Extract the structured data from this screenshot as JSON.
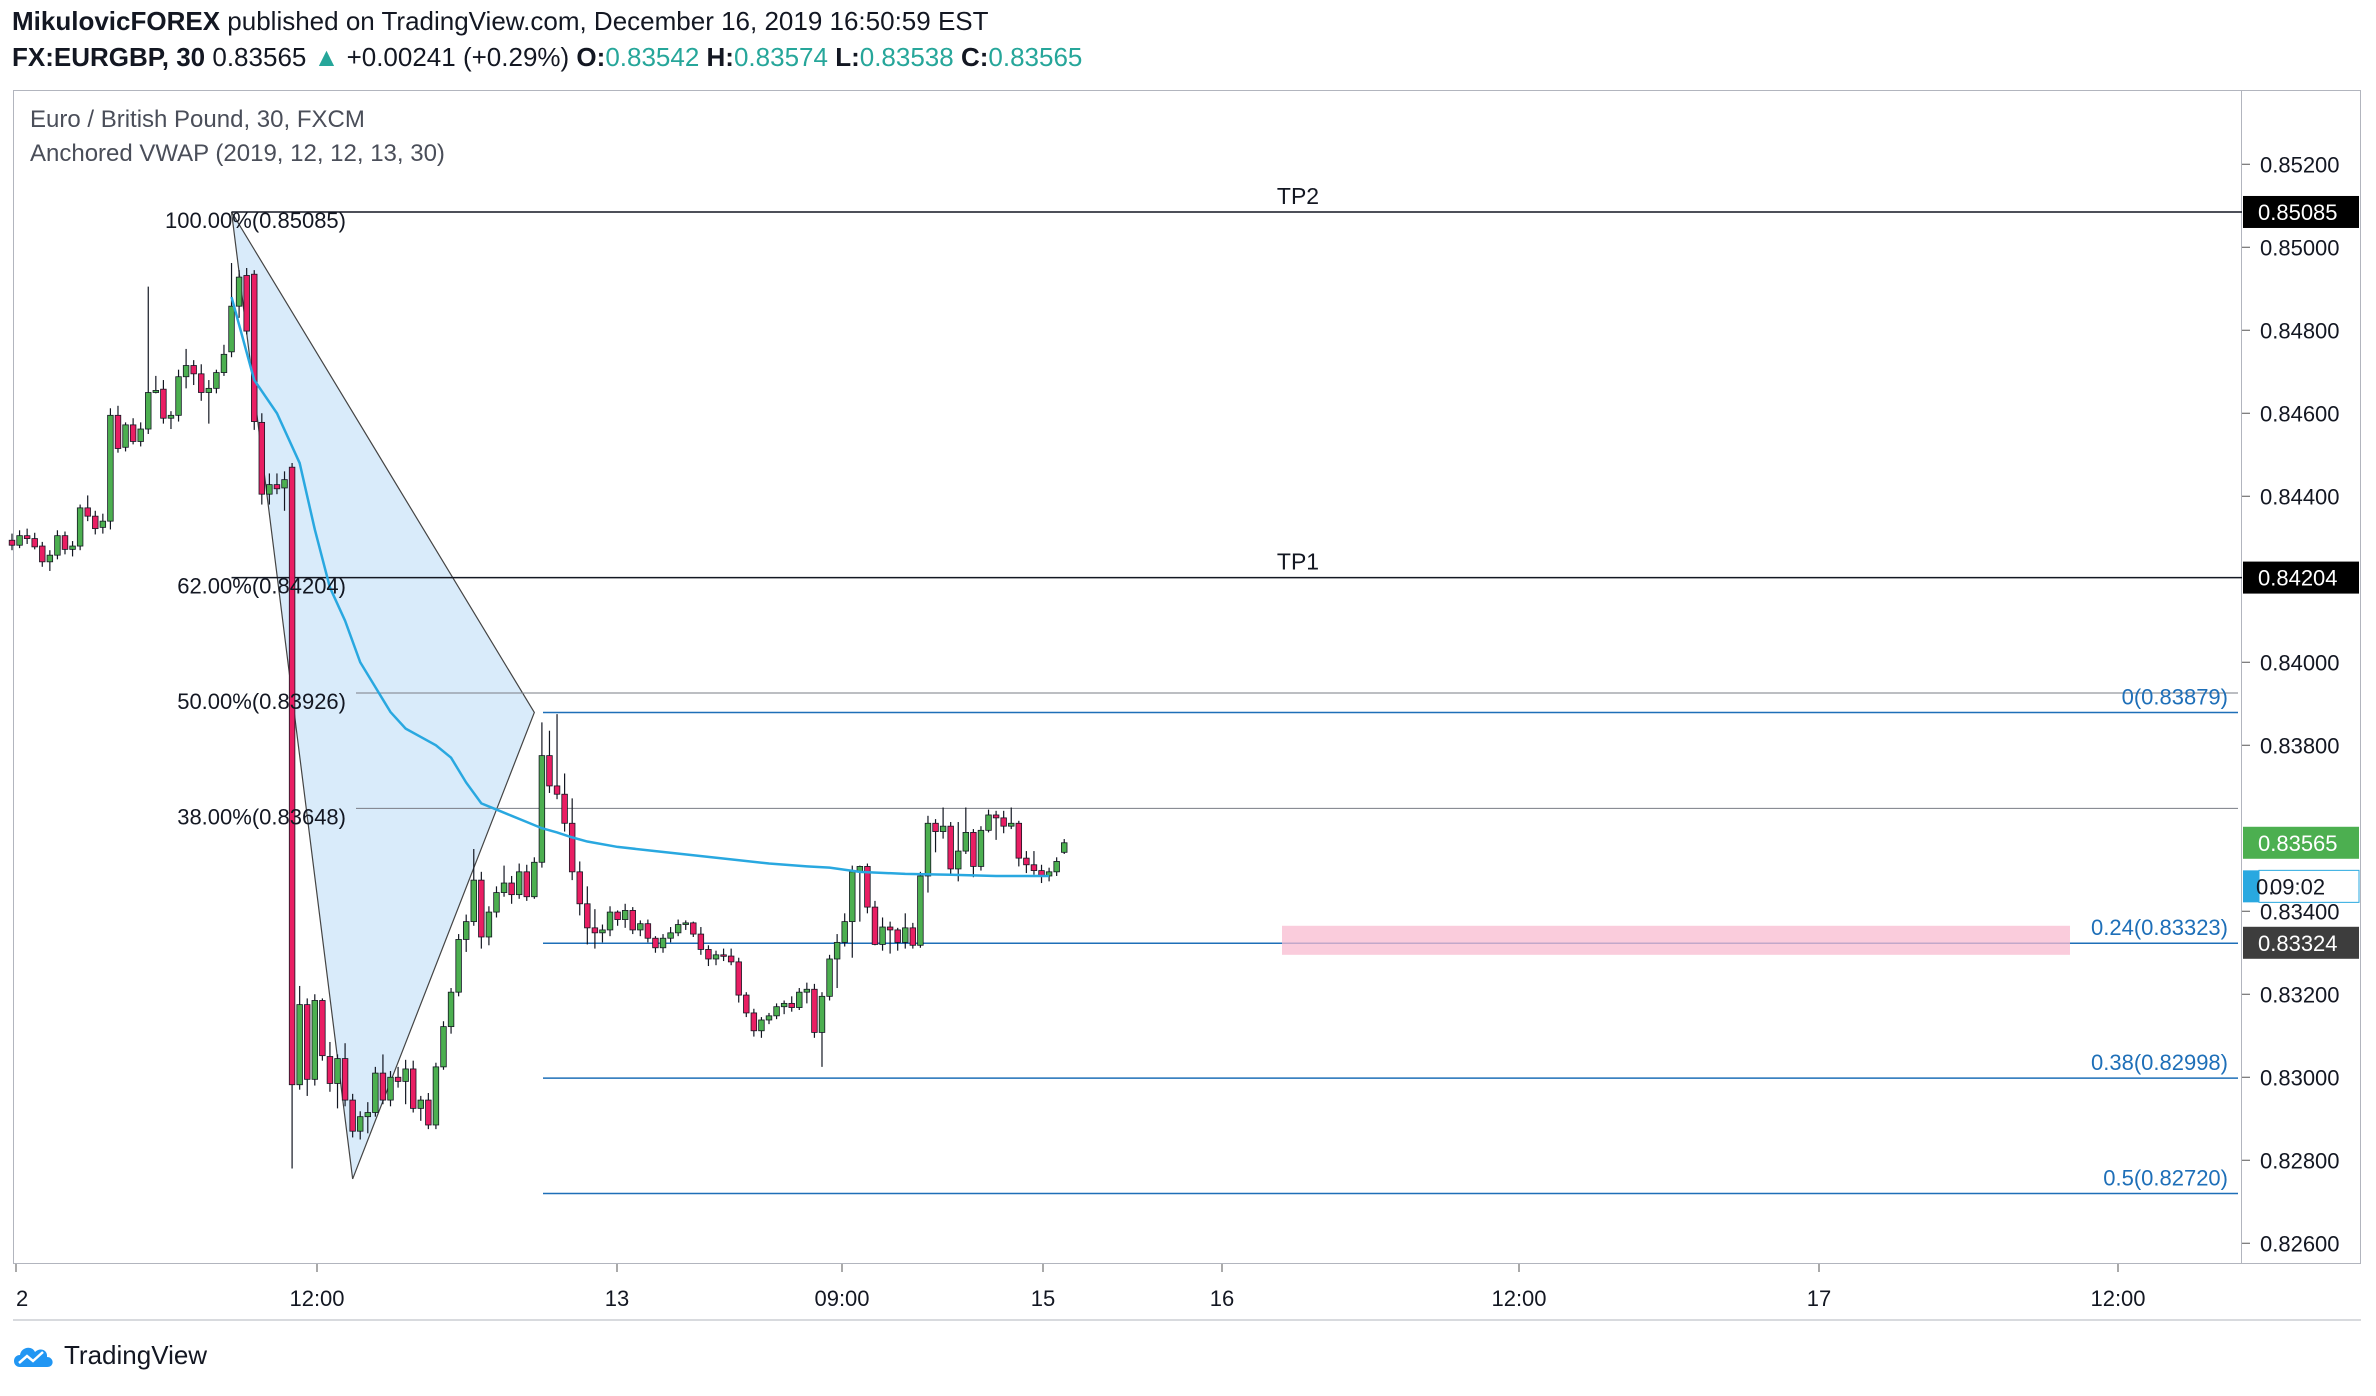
{
  "header": {
    "publisher": "MikulovicFOREX",
    "published_text": "published on TradingView.com, December 16, 2019 16:50:59 EST",
    "symbol": "FX:EURGBP, 30",
    "last": "0.83565",
    "change_arrow": "▲",
    "change": "+0.00241 (+0.29%)",
    "o_label": "O:",
    "o_val": "0.83542",
    "h_label": "H:",
    "h_val": "0.83574",
    "l_label": "L:",
    "l_val": "0.83538",
    "c_label": "C:",
    "c_val": "0.83565"
  },
  "legend": {
    "title": "Euro / British Pound, 30, FXCM",
    "indicator": "Anchored VWAP (2019, 12, 12, 13, 30)"
  },
  "footer": {
    "brand": "TradingView"
  },
  "colors": {
    "up": "#26a69a",
    "candle_up": "#4caf50",
    "candle_down": "#e91e63",
    "vwap": "#29a8e0",
    "fib": "#1e6fb8",
    "tp_line": "#131722",
    "triangle_fill": "#d9ebfa",
    "zone": "#f8bbd0"
  },
  "chart_data": {
    "type": "candlestick",
    "ylim": [
      0.8255,
      0.8527
    ],
    "price_ticks": [
      "0.85200",
      "0.85000",
      "0.84800",
      "0.84600",
      "0.84400",
      "0.84000",
      "0.83800",
      "0.83400",
      "0.83200",
      "0.83000",
      "0.82800",
      "0.82600"
    ],
    "time_labels": [
      "2",
      "12:00",
      "13",
      "09:00",
      "15",
      "16",
      "12:00",
      "17",
      "12:00"
    ],
    "price_labels": [
      {
        "text": "0.85085",
        "price": 0.85085,
        "style": "dark"
      },
      {
        "text": "0.84204",
        "price": 0.84204,
        "style": "dark"
      },
      {
        "text": "0.83565",
        "price": 0.83565,
        "style": "green"
      },
      {
        "text": "0.",
        "extra": "09:02",
        "price": 0.8346,
        "style": "vwap"
      },
      {
        "text": "0.83324",
        "price": 0.83324,
        "style": "gray"
      }
    ],
    "tp_lines": [
      {
        "label": "TP2",
        "price": 0.85085
      },
      {
        "label": "TP1",
        "price": 0.84204
      }
    ],
    "retracement_levels": [
      {
        "label": "100.00%(0.85085)",
        "price": 0.85085
      },
      {
        "label": "62.00%(0.84204)",
        "price": 0.84204
      },
      {
        "label": "50.00%(0.83926)",
        "price": 0.83926
      },
      {
        "label": "38.00%(0.83648)",
        "price": 0.83648
      }
    ],
    "fib_levels": [
      {
        "label": "0(0.83879)",
        "price": 0.83879
      },
      {
        "label": "0.24(0.83323)",
        "price": 0.83323
      },
      {
        "label": "0.38(0.82998)",
        "price": 0.82998
      },
      {
        "label": "0.5(0.82720)",
        "price": 0.8272
      }
    ],
    "zone": {
      "top": 0.83365,
      "bottom": 0.83295
    },
    "triangle": [
      {
        "bar": 29,
        "price": 0.85085
      },
      {
        "bar": 45,
        "price": 0.82755
      },
      {
        "bar": 69,
        "price": 0.83879
      }
    ],
    "candles": [
      [
        0.84294,
        0.8431,
        0.8427,
        0.84282
      ],
      [
        0.84282,
        0.84318,
        0.84275,
        0.84305
      ],
      [
        0.84305,
        0.84322,
        0.84285,
        0.84298
      ],
      [
        0.84298,
        0.84312,
        0.84272,
        0.84278
      ],
      [
        0.8428,
        0.8429,
        0.8423,
        0.84242
      ],
      [
        0.84242,
        0.8427,
        0.8422,
        0.84258
      ],
      [
        0.84258,
        0.84318,
        0.84248,
        0.84305
      ],
      [
        0.84305,
        0.84315,
        0.8426,
        0.84272
      ],
      [
        0.84272,
        0.84292,
        0.84255,
        0.8428
      ],
      [
        0.8428,
        0.8438,
        0.8427,
        0.84372
      ],
      [
        0.84372,
        0.84402,
        0.8434,
        0.84352
      ],
      [
        0.84352,
        0.84365,
        0.84308,
        0.84322
      ],
      [
        0.84325,
        0.84358,
        0.8431,
        0.8434
      ],
      [
        0.8434,
        0.84612,
        0.8432,
        0.84595
      ],
      [
        0.84595,
        0.84618,
        0.84505,
        0.84515
      ],
      [
        0.84518,
        0.84578,
        0.84508,
        0.84572
      ],
      [
        0.84572,
        0.84588,
        0.84525,
        0.84532
      ],
      [
        0.84532,
        0.84578,
        0.8452,
        0.84562
      ],
      [
        0.84562,
        0.84905,
        0.8455,
        0.8465
      ],
      [
        0.8465,
        0.8469,
        0.84648,
        0.84655
      ],
      [
        0.84658,
        0.8468,
        0.84575,
        0.84588
      ],
      [
        0.84588,
        0.84605,
        0.84562,
        0.84595
      ],
      [
        0.84595,
        0.84705,
        0.8458,
        0.84688
      ],
      [
        0.84688,
        0.84755,
        0.8466,
        0.84715
      ],
      [
        0.84715,
        0.84728,
        0.84668,
        0.84695
      ],
      [
        0.84695,
        0.84718,
        0.8463,
        0.8465
      ],
      [
        0.8465,
        0.8468,
        0.84575,
        0.8466
      ],
      [
        0.8466,
        0.84705,
        0.84648,
        0.84698
      ],
      [
        0.84698,
        0.84765,
        0.8469,
        0.84742
      ],
      [
        0.84748,
        0.84962,
        0.84735,
        0.84858
      ],
      [
        0.84858,
        0.84945,
        0.8483,
        0.84928
      ],
      [
        0.84932,
        0.8495,
        0.8479,
        0.84798
      ],
      [
        0.84935,
        0.84945,
        0.8456,
        0.8458
      ],
      [
        0.84578,
        0.846,
        0.8438,
        0.84405
      ],
      [
        0.84405,
        0.84455,
        0.8438,
        0.84428
      ],
      [
        0.84428,
        0.84455,
        0.84405,
        0.84418
      ],
      [
        0.8442,
        0.8446,
        0.84365,
        0.8444
      ],
      [
        0.8447,
        0.8448,
        0.8278,
        0.82982
      ],
      [
        0.82982,
        0.8322,
        0.8297,
        0.83175
      ],
      [
        0.83175,
        0.8319,
        0.82955,
        0.82995
      ],
      [
        0.82995,
        0.832,
        0.8298,
        0.83185
      ],
      [
        0.83185,
        0.8319,
        0.8304,
        0.83052
      ],
      [
        0.8305,
        0.83085,
        0.82965,
        0.82985
      ],
      [
        0.82985,
        0.83055,
        0.82925,
        0.83045
      ],
      [
        0.83045,
        0.83082,
        0.8293,
        0.82945
      ],
      [
        0.82945,
        0.8296,
        0.82855,
        0.8287
      ],
      [
        0.8287,
        0.82918,
        0.8285,
        0.82905
      ],
      [
        0.82905,
        0.8294,
        0.82865,
        0.82915
      ],
      [
        0.82915,
        0.83025,
        0.82905,
        0.8301
      ],
      [
        0.8301,
        0.83055,
        0.82935,
        0.82945
      ],
      [
        0.82945,
        0.83015,
        0.8293,
        0.83
      ],
      [
        0.83,
        0.83025,
        0.82975,
        0.8299
      ],
      [
        0.8299,
        0.83042,
        0.82935,
        0.8302
      ],
      [
        0.8302,
        0.8304,
        0.82915,
        0.82925
      ],
      [
        0.82925,
        0.82955,
        0.82895,
        0.82945
      ],
      [
        0.82945,
        0.82962,
        0.82875,
        0.82885
      ],
      [
        0.82885,
        0.83035,
        0.82875,
        0.83025
      ],
      [
        0.83025,
        0.83135,
        0.83018,
        0.83122
      ],
      [
        0.83122,
        0.83215,
        0.83105,
        0.83205
      ],
      [
        0.83205,
        0.83345,
        0.83195,
        0.83332
      ],
      [
        0.83332,
        0.83392,
        0.83302,
        0.83375
      ],
      [
        0.83375,
        0.8355,
        0.83365,
        0.83475
      ],
      [
        0.83475,
        0.83495,
        0.8331,
        0.83338
      ],
      [
        0.83338,
        0.83412,
        0.83318,
        0.83398
      ],
      [
        0.83398,
        0.8346,
        0.83385,
        0.83445
      ],
      [
        0.83445,
        0.8351,
        0.83435,
        0.83468
      ],
      [
        0.83468,
        0.83485,
        0.83418,
        0.8344
      ],
      [
        0.8344,
        0.83515,
        0.8343,
        0.83495
      ],
      [
        0.83495,
        0.83512,
        0.83425,
        0.83435
      ],
      [
        0.83435,
        0.8353,
        0.8343,
        0.83518
      ],
      [
        0.83518,
        0.83855,
        0.83505,
        0.83775
      ],
      [
        0.83775,
        0.83835,
        0.83685,
        0.83702
      ],
      [
        0.83702,
        0.83875,
        0.8367,
        0.83682
      ],
      [
        0.83682,
        0.83732,
        0.83592,
        0.83612
      ],
      [
        0.83612,
        0.83672,
        0.83475,
        0.83495
      ],
      [
        0.83495,
        0.8352,
        0.8339,
        0.83418
      ],
      [
        0.83418,
        0.8346,
        0.8332,
        0.8336
      ],
      [
        0.8336,
        0.83405,
        0.8331,
        0.83348
      ],
      [
        0.83348,
        0.83368,
        0.83325,
        0.83355
      ],
      [
        0.83355,
        0.83412,
        0.8334,
        0.83398
      ],
      [
        0.83398,
        0.83402,
        0.83365,
        0.8338
      ],
      [
        0.8338,
        0.83418,
        0.8336,
        0.83402
      ],
      [
        0.83402,
        0.8341,
        0.83345,
        0.83355
      ],
      [
        0.83355,
        0.83378,
        0.8334,
        0.8337
      ],
      [
        0.8337,
        0.8338,
        0.83325,
        0.83335
      ],
      [
        0.83335,
        0.8334,
        0.833,
        0.83312
      ],
      [
        0.83312,
        0.83345,
        0.833,
        0.83335
      ],
      [
        0.83335,
        0.83362,
        0.83325,
        0.83348
      ],
      [
        0.83348,
        0.8338,
        0.8334,
        0.83368
      ],
      [
        0.83368,
        0.83378,
        0.83355,
        0.83372
      ],
      [
        0.83372,
        0.83375,
        0.83338,
        0.83345
      ],
      [
        0.83345,
        0.83362,
        0.83295,
        0.83308
      ],
      [
        0.83308,
        0.83318,
        0.83268,
        0.83285
      ],
      [
        0.83285,
        0.83305,
        0.8327,
        0.83295
      ],
      [
        0.83295,
        0.8331,
        0.8328,
        0.83292
      ],
      [
        0.83292,
        0.8331,
        0.8327,
        0.83278
      ],
      [
        0.83278,
        0.83288,
        0.8318,
        0.83198
      ],
      [
        0.83198,
        0.83205,
        0.83145,
        0.83155
      ],
      [
        0.83155,
        0.83165,
        0.83098,
        0.83112
      ],
      [
        0.83112,
        0.83145,
        0.83095,
        0.83138
      ],
      [
        0.83138,
        0.83155,
        0.83128,
        0.83148
      ],
      [
        0.83148,
        0.83178,
        0.8314,
        0.8317
      ],
      [
        0.8317,
        0.83185,
        0.83152,
        0.83178
      ],
      [
        0.83178,
        0.83195,
        0.83158,
        0.83168
      ],
      [
        0.83168,
        0.83215,
        0.83162,
        0.83205
      ],
      [
        0.83205,
        0.83228,
        0.83178,
        0.83212
      ],
      [
        0.83212,
        0.83225,
        0.83095,
        0.83108
      ],
      [
        0.83108,
        0.83205,
        0.83025,
        0.83195
      ],
      [
        0.83195,
        0.83295,
        0.83185,
        0.83285
      ],
      [
        0.83285,
        0.83345,
        0.83215,
        0.83325
      ],
      [
        0.83325,
        0.83395,
        0.83315,
        0.83375
      ],
      [
        0.83375,
        0.8351,
        0.83288,
        0.83495
      ],
      [
        0.83495,
        0.8351,
        0.83375,
        0.83508
      ],
      [
        0.83508,
        0.83515,
        0.83395,
        0.8341
      ],
      [
        0.8341,
        0.83425,
        0.83318,
        0.8332
      ],
      [
        0.8332,
        0.83385,
        0.83305,
        0.83362
      ],
      [
        0.83362,
        0.83375,
        0.83298,
        0.83355
      ],
      [
        0.83355,
        0.8336,
        0.83305,
        0.83325
      ],
      [
        0.83325,
        0.83395,
        0.8331,
        0.8336
      ],
      [
        0.8336,
        0.83372,
        0.8331,
        0.83318
      ],
      [
        0.83318,
        0.83495,
        0.83312,
        0.83485
      ],
      [
        0.83485,
        0.8363,
        0.83445,
        0.83612
      ],
      [
        0.83612,
        0.83622,
        0.83542,
        0.83592
      ],
      [
        0.83592,
        0.8365,
        0.83575,
        0.83605
      ],
      [
        0.83605,
        0.83615,
        0.8349,
        0.83502
      ],
      [
        0.83502,
        0.83615,
        0.83472,
        0.83545
      ],
      [
        0.83545,
        0.8365,
        0.83538,
        0.8359
      ],
      [
        0.8359,
        0.83598,
        0.83482,
        0.83508
      ],
      [
        0.83508,
        0.83605,
        0.83498,
        0.83595
      ],
      [
        0.83595,
        0.83645,
        0.8359,
        0.83632
      ],
      [
        0.83632,
        0.83642,
        0.83572,
        0.83625
      ],
      [
        0.83625,
        0.83642,
        0.83588,
        0.83605
      ],
      [
        0.83605,
        0.8365,
        0.83598,
        0.83612
      ],
      [
        0.83612,
        0.83618,
        0.83508,
        0.83528
      ],
      [
        0.83528,
        0.83545,
        0.83492,
        0.83512
      ],
      [
        0.83512,
        0.83545,
        0.83488,
        0.83498
      ],
      [
        0.83498,
        0.83512,
        0.83468,
        0.83485
      ],
      [
        0.83485,
        0.83505,
        0.83472,
        0.83495
      ],
      [
        0.83495,
        0.8353,
        0.83485,
        0.8352
      ],
      [
        0.83542,
        0.83574,
        0.83538,
        0.83565
      ]
    ],
    "vwap": [
      [
        29,
        0.8488
      ],
      [
        32,
        0.8468
      ],
      [
        35,
        0.846
      ],
      [
        38,
        0.8448
      ],
      [
        40,
        0.8432
      ],
      [
        42,
        0.8418
      ],
      [
        44,
        0.841
      ],
      [
        46,
        0.84
      ],
      [
        48,
        0.8394
      ],
      [
        50,
        0.8388
      ],
      [
        52,
        0.8384
      ],
      [
        54,
        0.8382
      ],
      [
        56,
        0.838
      ],
      [
        58,
        0.8377
      ],
      [
        60,
        0.8371
      ],
      [
        62,
        0.8366
      ],
      [
        64,
        0.83645
      ],
      [
        66,
        0.8363
      ],
      [
        68,
        0.83615
      ],
      [
        70,
        0.836
      ],
      [
        72,
        0.8359
      ],
      [
        74,
        0.83578
      ],
      [
        76,
        0.83568
      ],
      [
        80,
        0.83555
      ],
      [
        85,
        0.83545
      ],
      [
        90,
        0.83535
      ],
      [
        95,
        0.83525
      ],
      [
        100,
        0.83515
      ],
      [
        105,
        0.83508
      ],
      [
        108,
        0.83505
      ],
      [
        112,
        0.83495
      ],
      [
        118,
        0.8349
      ],
      [
        124,
        0.83488
      ],
      [
        130,
        0.83485
      ],
      [
        137,
        0.83485
      ]
    ]
  }
}
